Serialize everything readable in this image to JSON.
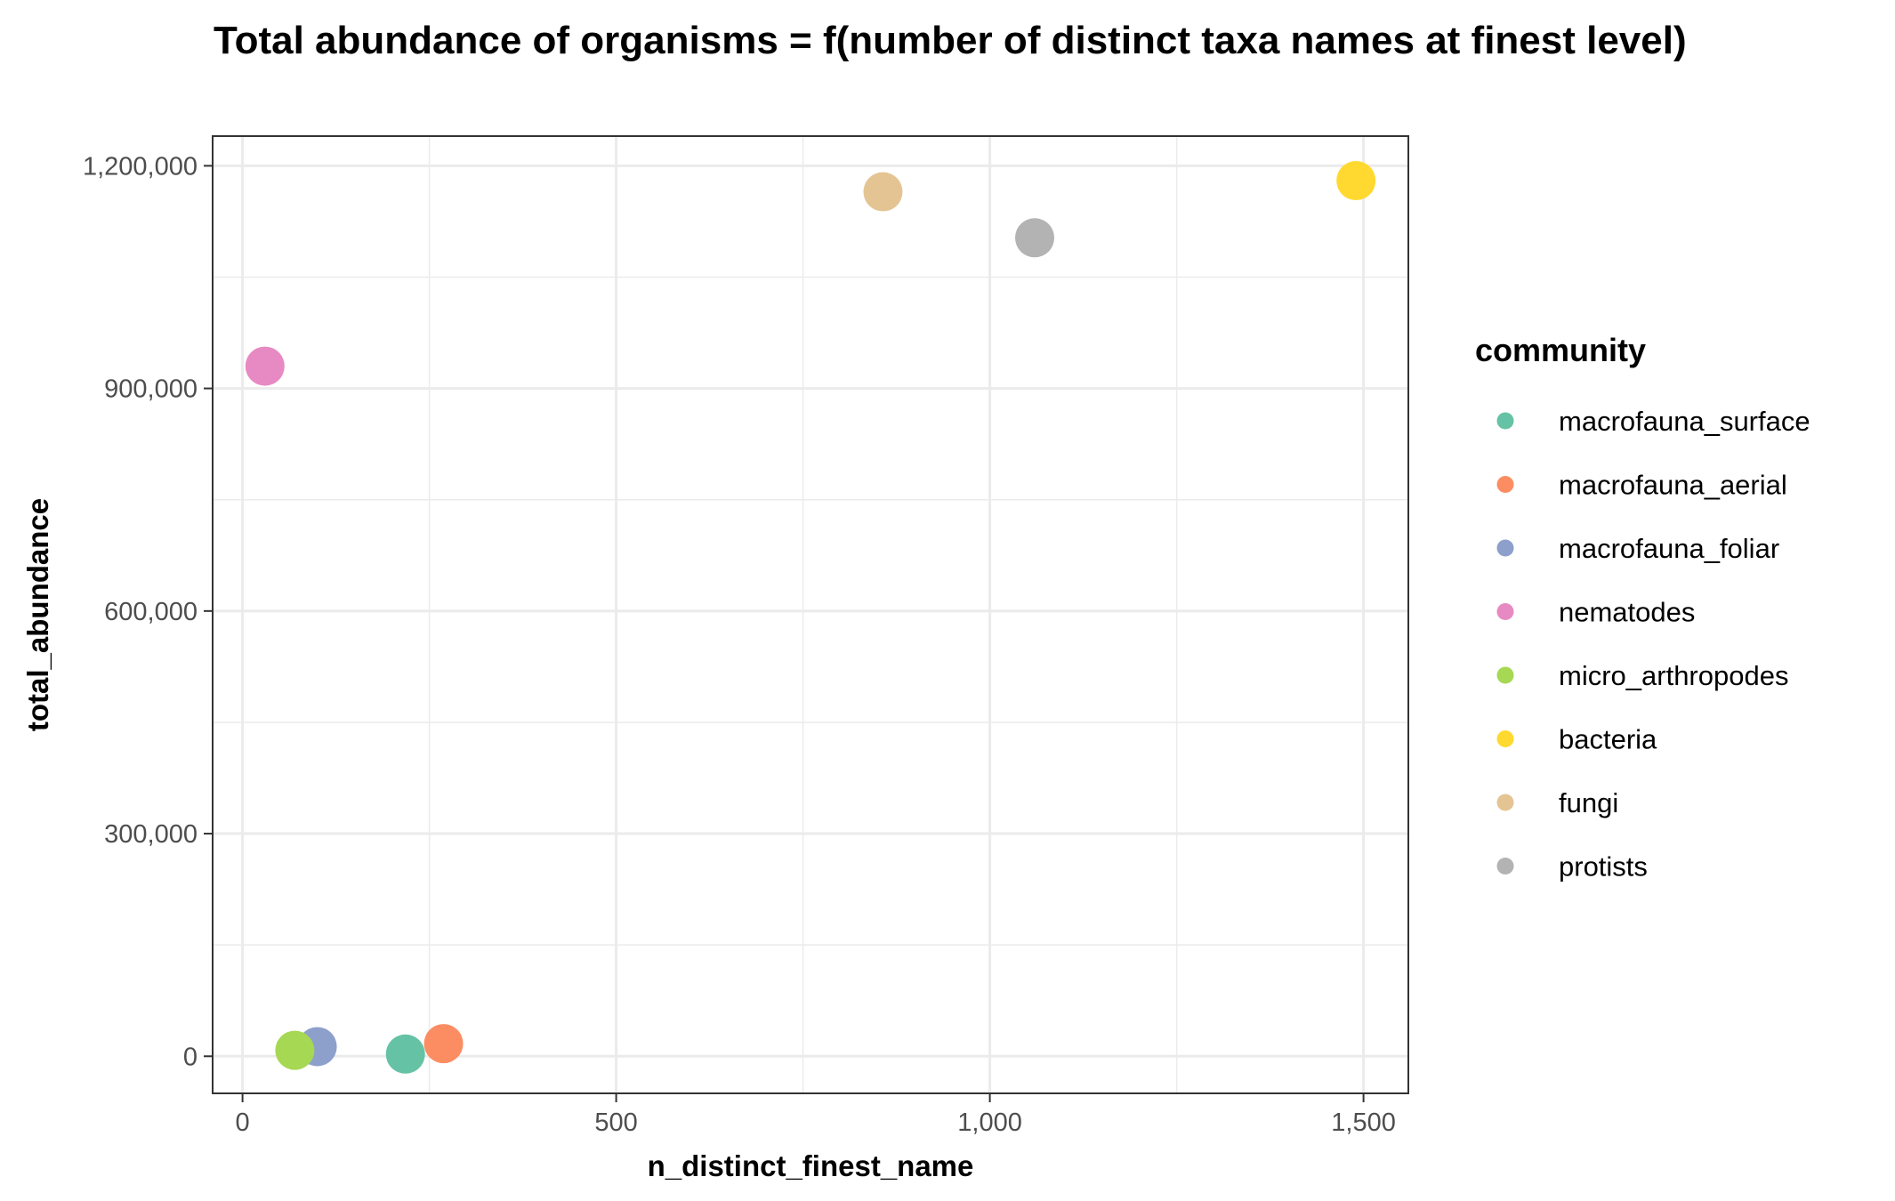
{
  "chart_data": {
    "type": "scatter",
    "title": "Total abundance of organisms = f(number of distinct taxa names at finest level)",
    "xlabel": "n_distinct_finest_name",
    "ylabel": "total_abundance",
    "xlim": [
      -40,
      1560
    ],
    "ylim": [
      -50000,
      1240000
    ],
    "x_ticks": [
      0,
      500,
      1000,
      1500
    ],
    "x_tick_labels": [
      "0",
      "500",
      "1,000",
      "1,500"
    ],
    "x_minor_ticks": [
      250,
      750,
      1250
    ],
    "y_ticks": [
      0,
      300000,
      600000,
      900000,
      1200000
    ],
    "y_tick_labels": [
      "0",
      "300,000",
      "600,000",
      "900,000",
      "1,200,000"
    ],
    "y_minor_ticks": [
      150000,
      450000,
      750000,
      1050000
    ],
    "grid": true,
    "legend_title": "community",
    "legend_position": "right",
    "series": [
      {
        "name": "macrofauna_surface",
        "color": "#66c2a5",
        "x": [
          218
        ],
        "y": [
          3000
        ]
      },
      {
        "name": "macrofauna_aerial",
        "color": "#fc8d62",
        "x": [
          269
        ],
        "y": [
          17000
        ]
      },
      {
        "name": "macrofauna_foliar",
        "color": "#8da0cb",
        "x": [
          100
        ],
        "y": [
          13000
        ]
      },
      {
        "name": "nematodes",
        "color": "#e78ac3",
        "x": [
          30
        ],
        "y": [
          930000
        ]
      },
      {
        "name": "micro_arthropodes",
        "color": "#a6d854",
        "x": [
          70
        ],
        "y": [
          8000
        ]
      },
      {
        "name": "bacteria",
        "color": "#ffd92f",
        "x": [
          1490
        ],
        "y": [
          1180000
        ]
      },
      {
        "name": "fungi",
        "color": "#e5c494",
        "x": [
          857
        ],
        "y": [
          1165000
        ]
      },
      {
        "name": "protists",
        "color": "#b3b3b3",
        "x": [
          1060
        ],
        "y": [
          1103000
        ]
      }
    ]
  }
}
